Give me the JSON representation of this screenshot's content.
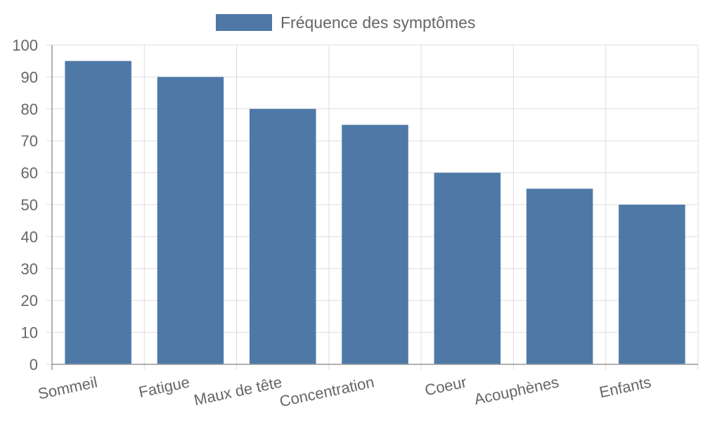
{
  "chart_data": {
    "type": "bar",
    "categories": [
      "Sommeil",
      "Fatigue",
      "Maux de tête",
      "Concentration",
      "Coeur",
      "Acouphènes",
      "Enfants"
    ],
    "series": [
      {
        "name": "Fréquence des symptômes",
        "values": [
          95,
          90,
          80,
          75,
          60,
          55,
          50
        ]
      }
    ],
    "title": "",
    "xlabel": "",
    "ylabel": "",
    "ylim": [
      0,
      100
    ],
    "yticks": [
      0,
      10,
      20,
      30,
      40,
      50,
      60,
      70,
      80,
      90,
      100
    ],
    "grid": true,
    "legend_position": "top",
    "colors": {
      "bar": "#4e79a7",
      "grid": "#dddddd",
      "axis": "#999999",
      "text": "#666666"
    }
  }
}
